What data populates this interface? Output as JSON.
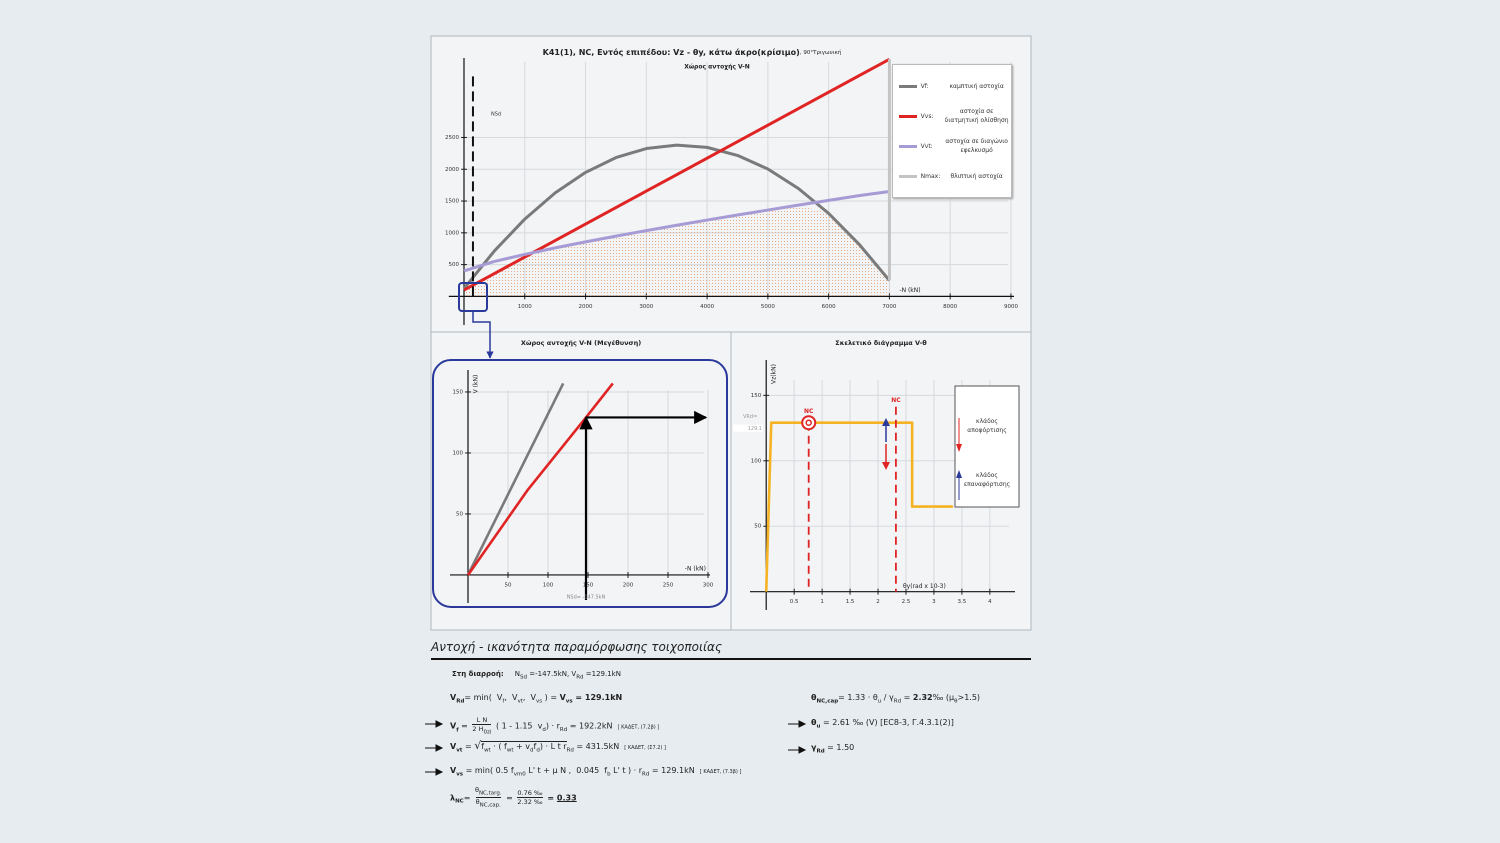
{
  "chart_data": [
    {
      "type": "line",
      "title": "K41(1), NC, Εντός επιπέδου: Vz - θy, κάτω άκρο(κρίσιμο)",
      "note": ", 90°Τριγωνική",
      "subtitle": "Χώρος αντοχής V-N",
      "x_label": "-N (kN)",
      "x": [
        0,
        500,
        1000,
        1500,
        2000,
        2500,
        3000,
        3500,
        4000,
        4500,
        5000,
        5500,
        6000,
        6500,
        7000
      ],
      "series": [
        {
          "name": "Vf:",
          "description": "καμπτική αστοχία",
          "color": "#7a7a7a",
          "values": [
            124,
            715,
            1216,
            1628,
            1950,
            2183,
            2326,
            2380,
            2344,
            2218,
            2004,
            1699,
            1306,
            822,
            250
          ]
        },
        {
          "name": "Vvs:",
          "description": "αστοχία σε διατμητική ολίσθηση",
          "color": "#e02424",
          "values": [
            100,
            359,
            619,
            878,
            1137,
            1397,
            1656,
            1915,
            2174,
            2434,
            2693,
            2952,
            3212,
            3471,
            3730
          ]
        },
        {
          "name": "Vvt:",
          "description": "αστοχία σε διαγώνιο εφελκυσμό",
          "color": "#a79bd6",
          "values": [
            400,
            550,
            660,
            763,
            858,
            948,
            1035,
            1119,
            1201,
            1280,
            1358,
            1435,
            1510,
            1585,
            1650
          ]
        },
        {
          "name": "Nmax:",
          "description": "θλιπτική αστοχία",
          "color": "#c4c4c4",
          "x": [
            7000,
            7000
          ],
          "values": [
            250,
            3730
          ]
        }
      ],
      "nsd": 147.5,
      "nsd_label": "NSd",
      "xlim": [
        -250,
        9050
      ],
      "ylim": [
        -450,
        3750
      ],
      "xticks": [
        1000,
        2000,
        3000,
        4000,
        5000,
        6000,
        7000,
        8000,
        9000
      ],
      "yticks": [
        500,
        1000,
        1500,
        2000,
        2500
      ],
      "grid": true,
      "legend": "upper right"
    },
    {
      "type": "line",
      "title": "Χώρος αντοχής V-N (Μεγέθυνση)",
      "x_label": "-N (kN)",
      "y_label": "V (kN)",
      "series": [
        {
          "color": "#7a7a7a",
          "x": [
            0,
            119
          ],
          "values": [
            0,
            157
          ]
        },
        {
          "color": "#e02424",
          "x": [
            0,
            75,
            147.5,
            181
          ],
          "values": [
            0,
            70,
            129.1,
            157
          ]
        }
      ],
      "nsd": 147.5,
      "vrd": 129.1,
      "nsd_label": "NSd= -147.5kN",
      "xlim": [
        -22.5,
        302.5
      ],
      "ylim": [
        -23,
        168
      ],
      "xticks": [
        50,
        100,
        150,
        200,
        250,
        300
      ],
      "yticks": [
        50,
        100,
        150
      ],
      "grid": true
    },
    {
      "type": "line",
      "title": "Σκελετικό διάγραμμα V-θ",
      "x_label": "θy(rad x 10-3)",
      "y_label": "Vz(kN)",
      "series": [
        {
          "color": "#f5b324",
          "x": [
            0,
            0.09,
            2.61,
            2.61,
            3.34
          ],
          "values": [
            0,
            129.1,
            129.1,
            65,
            65
          ]
        }
      ],
      "vrd": 129.1,
      "vrd_label": "VRd=",
      "target": {
        "label": "NC",
        "x": 0.76
      },
      "capacity": {
        "label": "NC",
        "x": 2.32
      },
      "legend_items": [
        "κλάδος αποφόρτισης",
        "κλάδος επαναφόρτισης"
      ],
      "xlim": [
        -0.29,
        4.45
      ],
      "ylim": [
        -14,
        177
      ],
      "xticks": [
        0.5,
        1,
        1.5,
        2,
        2.5,
        3,
        3.5,
        4
      ],
      "yticks": [
        50,
        100,
        150
      ],
      "grid": true
    }
  ],
  "report": {
    "heading": "Αντοχή - ικανότητα παραμόρφωσης τοιχοποιίας",
    "l0": [
      "Στη διαρροή:",
      "N",
      "Sd",
      " =-147.5kN, V",
      "Rd",
      " =129.1kN"
    ],
    "l1": [
      "V",
      "Rd",
      "= min(  V",
      "f",
      ",  V",
      "vt",
      ",  V",
      "vs",
      " ) = ",
      "V",
      "vs",
      " = 129.1kN"
    ],
    "r1": [
      "θ",
      "NC,cap",
      "= 1.33 · θ",
      "u",
      " / γ",
      "Rd",
      " = ",
      "2.32",
      "‰ (μ",
      "θ",
      ">1.5)"
    ],
    "l2": [
      "V",
      "f",
      " = ",
      "L N",
      "2 H",
      "0zi",
      " ( 1 - 1.15  v",
      "d",
      ") · r",
      "Rd",
      " = 192.2kN",
      "[ ΚΑΔΕΤ, (7.2β) ]"
    ],
    "r2": [
      "θ",
      "u",
      " = 2.61 ‰ (V) [EC8-3, Γ.4.3.1(2)]"
    ],
    "l3": [
      "V",
      "vt",
      " = ",
      "√",
      "f",
      "wt",
      " · ( f",
      "wt",
      " + v",
      "d",
      "f",
      "d",
      ") · L t r",
      "Rd",
      " = 431.5kN",
      "[ ΚΑΔΕΤ, (Σ7.2) ]"
    ],
    "r3": [
      "γ",
      "Rd",
      " = 1.50"
    ],
    "l4": [
      "V",
      "vs",
      " = min( 0.5 f",
      "vm0",
      " L' t + μ N ,  0.045  f",
      "b",
      " L' t ) · r",
      "Rd",
      " = 129.1kN",
      "[ ΚΑΔΕΤ, (7.3β) ]"
    ],
    "l5": [
      "λ",
      "NC",
      "= ",
      "θ",
      "NC,targ.",
      "θ",
      "NC,cap.",
      " = ",
      "0.76 ‰",
      "2.32 ‰",
      " = ",
      "0.33"
    ]
  }
}
